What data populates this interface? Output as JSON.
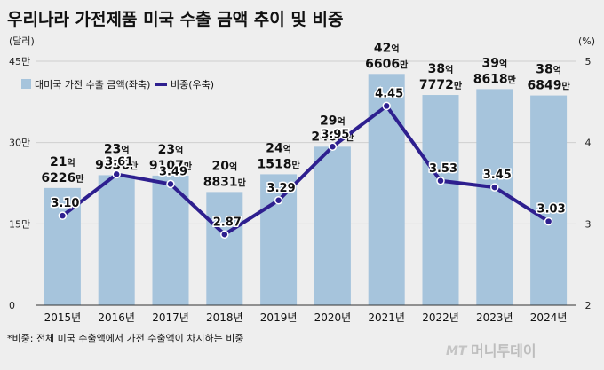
{
  "title": "우리나라 가전제품 미국 수출 금액 추이 및 비중",
  "footnote": "*비중: 전체 미국 수출액에서 가전 수출액이 차지하는 비중",
  "watermark": {
    "mt": "MT",
    "name": "머니투데이"
  },
  "chart_data": {
    "type": "bar+line",
    "left_axis": {
      "unit": "(달러)",
      "ticks": [
        "0",
        "15만",
        "30만",
        "45만"
      ],
      "range": [
        0,
        450000
      ]
    },
    "right_axis": {
      "unit": "(%)",
      "ticks": [
        "2",
        "3",
        "4",
        "5"
      ],
      "range": [
        2,
        5
      ]
    },
    "categories": [
      "2015년",
      "2016년",
      "2017년",
      "2018년",
      "2019년",
      "2020년",
      "2021년",
      "2022년",
      "2023년",
      "2024년"
    ],
    "bars": {
      "name": "대미국 가전 수출 금액(좌축)",
      "color": "#a6c4dc",
      "values": [
        216226,
        239836,
        239107,
        208831,
        241518,
        292409,
        426606,
        387772,
        398618,
        386849
      ],
      "labels": [
        {
          "eok": "21",
          "man": "6226"
        },
        {
          "eok": "23",
          "man": "9836"
        },
        {
          "eok": "23",
          "man": "9107"
        },
        {
          "eok": "20",
          "man": "8831"
        },
        {
          "eok": "24",
          "man": "1518"
        },
        {
          "eok": "29",
          "man": "2409"
        },
        {
          "eok": "42",
          "man": "6606"
        },
        {
          "eok": "38",
          "man": "7772"
        },
        {
          "eok": "39",
          "man": "8618"
        },
        {
          "eok": "38",
          "man": "6849"
        }
      ]
    },
    "line": {
      "name": "비중(우축)",
      "color": "#2e1f8f",
      "values": [
        3.1,
        3.61,
        3.49,
        2.87,
        3.29,
        3.95,
        4.45,
        3.53,
        3.45,
        3.03
      ],
      "labels": [
        "3.10",
        "3.61",
        "3.49",
        "2.87",
        "3.29",
        "3.95",
        "4.45",
        "3.53",
        "3.45",
        "3.03"
      ]
    },
    "units": {
      "eok": "억",
      "man": "만"
    }
  }
}
